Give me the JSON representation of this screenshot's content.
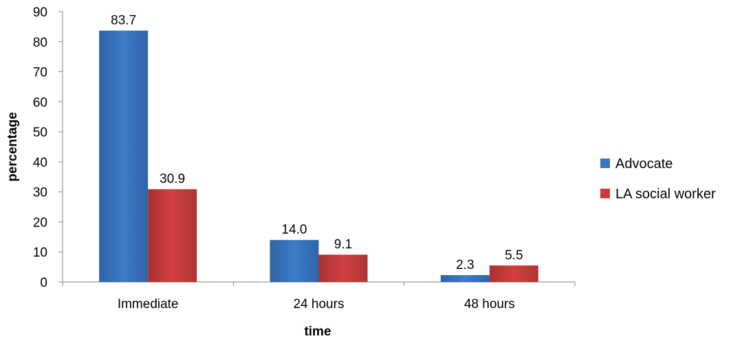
{
  "chart_data": {
    "type": "bar",
    "title": "",
    "xlabel": "time",
    "ylabel": "percentage",
    "ylim": [
      0,
      90
    ],
    "yticks": [
      0,
      10,
      20,
      30,
      40,
      50,
      60,
      70,
      80,
      90
    ],
    "grid": false,
    "legend_position": "right",
    "categories": [
      "Immediate",
      "24 hours",
      "48 hours"
    ],
    "series": [
      {
        "name": "Advocate",
        "values": [
          83.7,
          14.0,
          2.3
        ],
        "labels": [
          "83.7",
          "14.0",
          "2.3"
        ],
        "color": "#3A78C3"
      },
      {
        "name": "LA social worker",
        "values": [
          30.9,
          9.1,
          5.5
        ],
        "labels": [
          "30.9",
          "9.1",
          "5.5"
        ],
        "color": "#C83B3A"
      }
    ]
  }
}
